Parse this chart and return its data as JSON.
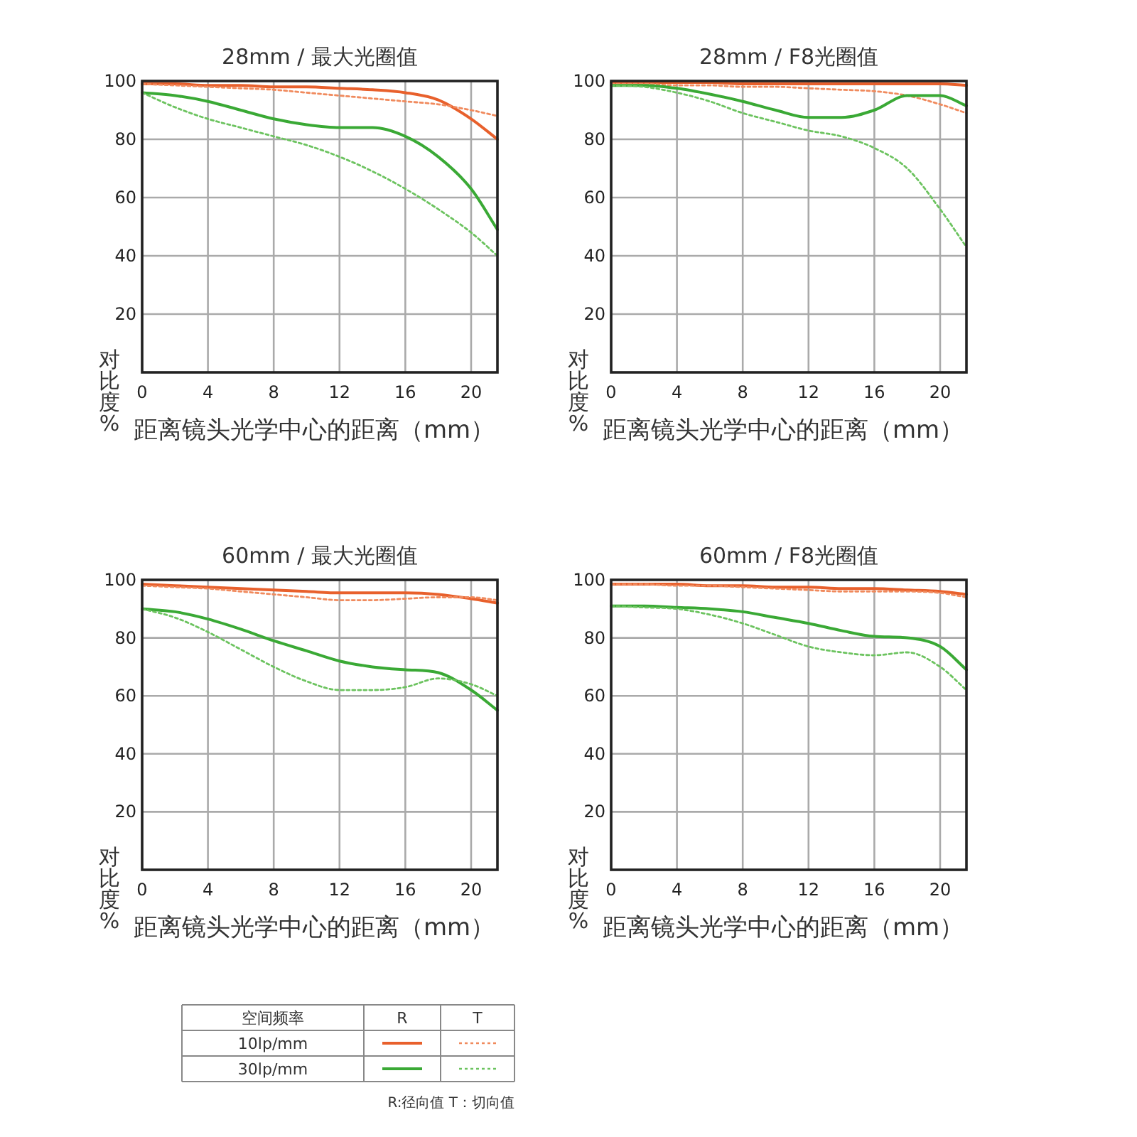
{
  "chart_data": [
    {
      "type": "line",
      "title": "28mm / 最大光圈值",
      "xlabel": "距离镜头光学中心的距离（mm）",
      "ylabel": "对比度%",
      "x": [
        0,
        2,
        4,
        6,
        8,
        10,
        12,
        14,
        16,
        18,
        20,
        21.6
      ],
      "xlim": [
        0,
        21.6
      ],
      "xticks": [
        0,
        4,
        8,
        12,
        16,
        20
      ],
      "ylim": [
        0,
        100
      ],
      "yticks": [
        20,
        40,
        60,
        80,
        100
      ],
      "grid": true,
      "series": [
        {
          "color": "#e8602c",
          "line_style": "solid",
          "values": [
            99,
            99,
            98.5,
            98.5,
            98,
            98,
            97.5,
            97,
            96,
            93.5,
            87,
            80
          ]
        },
        {
          "color": "#f08a5d",
          "line_style": "dotted",
          "values": [
            99,
            98.5,
            98,
            97.5,
            97,
            96,
            95,
            94,
            93,
            92,
            90,
            88
          ]
        },
        {
          "color": "#3aa935",
          "line_style": "solid",
          "values": [
            96,
            95,
            93,
            90,
            87,
            85,
            84,
            84,
            81,
            74,
            63,
            49
          ]
        },
        {
          "color": "#6cc35f",
          "line_style": "dotted",
          "values": [
            96,
            91,
            87,
            84,
            81,
            78,
            74,
            69,
            63,
            56,
            48,
            40
          ]
        }
      ]
    },
    {
      "type": "line",
      "title": "28mm / F8光圈值",
      "xlabel": "距离镜头光学中心的距离（mm）",
      "ylabel": "对比度%",
      "x": [
        0,
        2,
        4,
        6,
        8,
        10,
        12,
        14,
        16,
        18,
        20,
        21.6
      ],
      "xlim": [
        0,
        21.6
      ],
      "xticks": [
        0,
        4,
        8,
        12,
        16,
        20
      ],
      "ylim": [
        0,
        100
      ],
      "yticks": [
        20,
        40,
        60,
        80,
        100
      ],
      "grid": true,
      "series": [
        {
          "color": "#e8602c",
          "line_style": "solid",
          "values": [
            99.5,
            99.5,
            99.5,
            99.5,
            99,
            99,
            99,
            99,
            99,
            99,
            99,
            98.5
          ]
        },
        {
          "color": "#f08a5d",
          "line_style": "dotted",
          "values": [
            99,
            99,
            98.5,
            98.5,
            98,
            98,
            97.5,
            97,
            96.5,
            95,
            92,
            89
          ]
        },
        {
          "color": "#3aa935",
          "line_style": "solid",
          "values": [
            98.5,
            98.5,
            97.5,
            95.5,
            93,
            90,
            87.5,
            87.5,
            90,
            95,
            95,
            91.5
          ]
        },
        {
          "color": "#6cc35f",
          "line_style": "dotted",
          "values": [
            98.5,
            98,
            96,
            93,
            89,
            86,
            83,
            81,
            77,
            70,
            56,
            43
          ]
        }
      ]
    },
    {
      "type": "line",
      "title": "60mm / 最大光圈值",
      "xlabel": "距离镜头光学中心的距离（mm）",
      "ylabel": "对比度%",
      "x": [
        0,
        2,
        4,
        6,
        8,
        10,
        12,
        14,
        16,
        18,
        20,
        21.6
      ],
      "xlim": [
        0,
        21.6
      ],
      "xticks": [
        0,
        4,
        8,
        12,
        16,
        20
      ],
      "ylim": [
        0,
        100
      ],
      "yticks": [
        20,
        40,
        60,
        80,
        100
      ],
      "grid": true,
      "series": [
        {
          "color": "#e8602c",
          "line_style": "solid",
          "values": [
            98.5,
            98,
            97.5,
            97,
            96.5,
            96,
            95.5,
            95.5,
            95.5,
            95,
            93.5,
            92
          ]
        },
        {
          "color": "#f08a5d",
          "line_style": "dotted",
          "values": [
            98,
            97.5,
            97,
            96,
            95,
            94,
            93,
            93,
            93.5,
            94,
            94,
            93
          ]
        },
        {
          "color": "#3aa935",
          "line_style": "solid",
          "values": [
            90,
            89,
            86.5,
            83,
            79,
            75.5,
            72,
            70,
            69,
            68,
            62,
            55
          ]
        },
        {
          "color": "#6cc35f",
          "line_style": "dotted",
          "values": [
            90,
            87,
            82,
            76,
            70,
            65,
            62,
            62,
            63,
            66,
            64,
            60
          ]
        }
      ]
    },
    {
      "type": "line",
      "title": "60mm / F8光圈值",
      "xlabel": "距离镜头光学中心的距离（mm）",
      "ylabel": "对比度%",
      "x": [
        0,
        2,
        4,
        6,
        8,
        10,
        12,
        14,
        16,
        18,
        20,
        21.6
      ],
      "xlim": [
        0,
        21.6
      ],
      "xticks": [
        0,
        4,
        8,
        12,
        16,
        20
      ],
      "ylim": [
        0,
        100
      ],
      "yticks": [
        20,
        40,
        60,
        80,
        100
      ],
      "grid": true,
      "series": [
        {
          "color": "#e8602c",
          "line_style": "solid",
          "values": [
            98.5,
            98.5,
            98.5,
            98,
            98,
            97.5,
            97.5,
            97,
            97,
            96.5,
            96,
            95
          ]
        },
        {
          "color": "#f08a5d",
          "line_style": "dotted",
          "values": [
            98.5,
            98.5,
            98,
            98,
            97.5,
            97,
            96.5,
            96,
            96,
            96,
            95.5,
            94
          ]
        },
        {
          "color": "#3aa935",
          "line_style": "solid",
          "values": [
            91,
            91,
            90.5,
            90,
            89,
            87,
            85,
            82.5,
            80.5,
            80,
            77,
            69
          ]
        },
        {
          "color": "#6cc35f",
          "line_style": "dotted",
          "values": [
            91,
            90.5,
            90,
            88,
            85,
            81,
            77,
            75,
            74,
            75,
            70,
            62
          ]
        }
      ]
    },
    {
      "type": "other",
      "annotations": [
        "空间频率",
        "R",
        "T",
        "10lp/mm",
        "30lp/mm",
        "R:径向值  T：切向值"
      ]
    }
  ]
}
